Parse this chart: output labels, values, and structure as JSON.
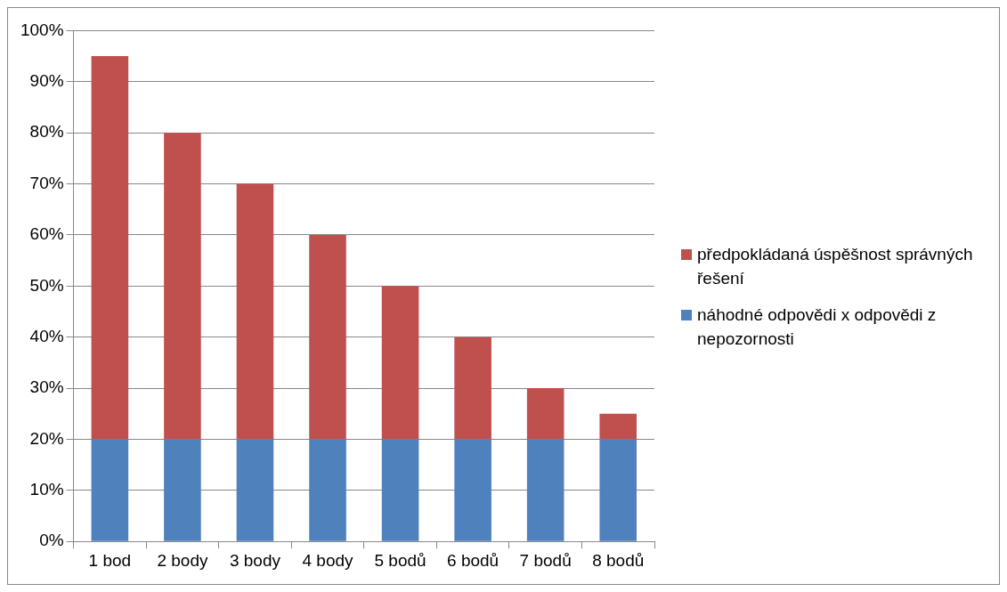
{
  "chart_data": {
    "type": "bar",
    "stacked": true,
    "grid": "y",
    "legend": "right",
    "categories": [
      "1 bod",
      "2 body",
      "3 body",
      "4 body",
      "5 bodů",
      "6 bodů",
      "7 bodů",
      "8 bodů"
    ],
    "series": [
      {
        "name": "náhodné odpovědi x odpovědi z nepozornosti",
        "color": "#4f81bd",
        "values": [
          20,
          20,
          20,
          20,
          20,
          20,
          20,
          20
        ]
      },
      {
        "name": "předpokládaná úspěšnost správných řešení",
        "color": "#c0504d",
        "values": [
          75,
          60,
          50,
          40,
          30,
          20,
          10,
          5
        ]
      }
    ],
    "ylim": [
      0,
      100
    ],
    "yticks": [
      {
        "value": 0,
        "label": "0%"
      },
      {
        "value": 10,
        "label": "10%"
      },
      {
        "value": 20,
        "label": "20%"
      },
      {
        "value": 30,
        "label": "30%"
      },
      {
        "value": 40,
        "label": "40%"
      },
      {
        "value": 50,
        "label": "50%"
      },
      {
        "value": 60,
        "label": "60%"
      },
      {
        "value": 70,
        "label": "70%"
      },
      {
        "value": 80,
        "label": "80%"
      },
      {
        "value": 90,
        "label": "90%"
      },
      {
        "value": 100,
        "label": "100%"
      }
    ]
  }
}
